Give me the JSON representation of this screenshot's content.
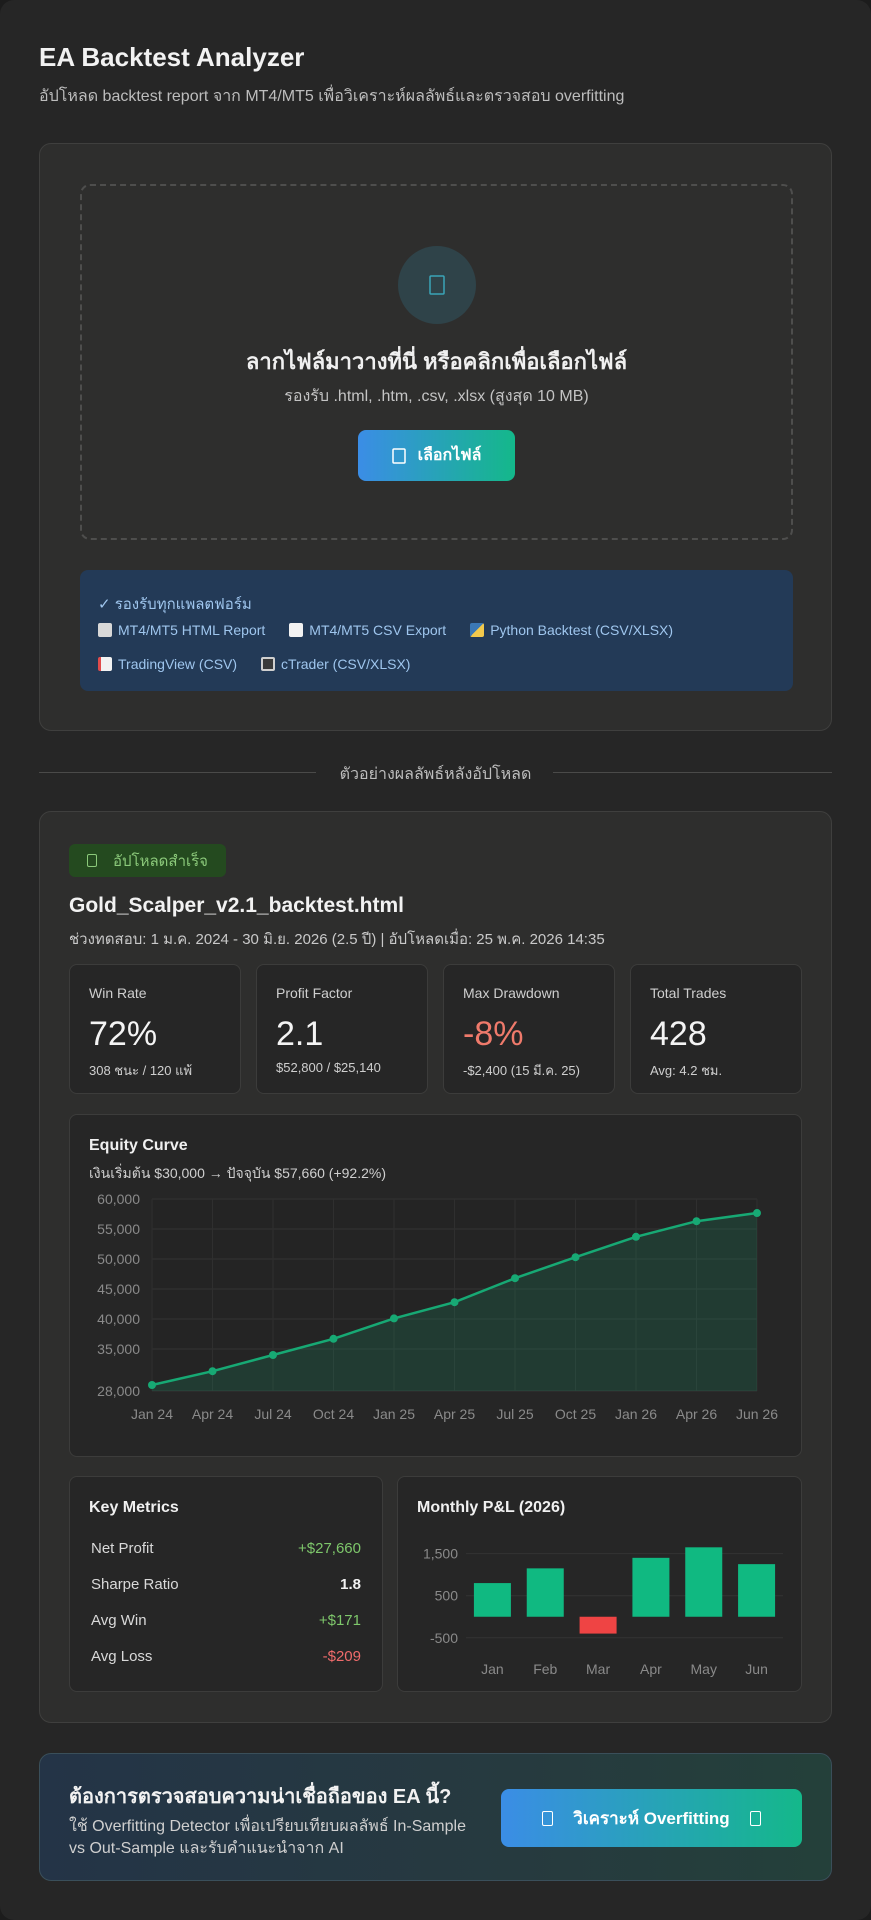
{
  "header": {
    "title": "EA Backtest Analyzer",
    "subtitle": "อัปโหลด backtest report จาก MT4/MT5 เพื่อวิเคราะห์ผลลัพธ์และตรวจสอบ overfitting"
  },
  "upload": {
    "drop_title": "ลากไฟล์มาวางที่นี่ หรือคลิกเพื่อเลือกไฟล์",
    "drop_sub": "รองรับ .html, .htm, .csv, .xlsx (สูงสุด 10 MB)",
    "choose_label": "เลือกไฟล์",
    "platforms_heading": "✓ รองรับทุกแพลตฟอร์ม",
    "platforms": [
      {
        "icon": "bar-chart-icon",
        "label": "MT4/MT5 HTML Report"
      },
      {
        "icon": "document-icon",
        "label": "MT4/MT5 CSV Export"
      },
      {
        "icon": "python-icon",
        "label": "Python Backtest (CSV/XLSX)"
      },
      {
        "icon": "line-chart-icon",
        "label": "TradingView (CSV)"
      },
      {
        "icon": "laptop-icon",
        "label": "cTrader (CSV/XLSX)"
      }
    ]
  },
  "divider_text": "ตัวอย่างผลลัพธ์หลังอัปโหลด",
  "result": {
    "badge": "อัปโหลดสำเร็จ",
    "file_name": "Gold_Scalper_v2.1_backtest.html",
    "meta": "ช่วงทดสอบ: 1 ม.ค. 2024 - 30 มิ.ย. 2026 (2.5 ปี) | อัปโหลดเมื่อ: 25 พ.ค. 2026 14:35",
    "stats": [
      {
        "label": "Win Rate",
        "value": "72%",
        "sub": "308 ชนะ / 120 แพ้",
        "tone": "normal"
      },
      {
        "label": "Profit Factor",
        "value": "2.1",
        "sub": "$52,800 / $25,140",
        "tone": "normal"
      },
      {
        "label": "Max Drawdown",
        "value": "-8%",
        "sub": "-$2,400 (15 มี.ค. 25)",
        "tone": "negative"
      },
      {
        "label": "Total Trades",
        "value": "428",
        "sub": "Avg: 4.2 ชม.",
        "tone": "normal"
      }
    ],
    "equity": {
      "title": "Equity Curve",
      "subtitle": "เงินเริ่มต้น $30,000 → ปัจจุบัน $57,660 (+92.2%)"
    },
    "key_metrics": {
      "title": "Key Metrics",
      "rows": [
        {
          "label": "Net Profit",
          "value": "+$27,660",
          "tone": "pos"
        },
        {
          "label": "Sharpe Ratio",
          "value": "1.8",
          "tone": "neutral"
        },
        {
          "label": "Avg Win",
          "value": "+$171",
          "tone": "pos"
        },
        {
          "label": "Avg Loss",
          "value": "-$209",
          "tone": "neg"
        }
      ]
    },
    "monthly": {
      "title": "Monthly P&L (2026)"
    }
  },
  "cta": {
    "title": "ต้องการตรวจสอบความน่าเชื่อถือของ EA นี้?",
    "desc": "ใช้ Overfitting Detector เพื่อเปรียบเทียบผลลัพธ์ In-Sample vs Out-Sample และรับคำแนะนำจาก AI",
    "button_label": "วิเคราะห์ Overfitting"
  },
  "colors": {
    "accent_blue": "#3b8de6",
    "accent_green": "#14b88a",
    "positive": "#7ec76b",
    "negative": "#ef6b6b",
    "line": "#17a974",
    "bar_pos": "#10b981",
    "bar_neg": "#ef4444"
  },
  "chart_data": [
    {
      "type": "area",
      "x": [
        "Jan 24",
        "Apr 24",
        "Jul 24",
        "Oct 24",
        "Jan 25",
        "Apr 25",
        "Jul 25",
        "Oct 25",
        "Jan 26",
        "Apr 26",
        "Jun 26"
      ],
      "y_tick_labels": [
        "28,000",
        "35,000",
        "40,000",
        "45,000",
        "50,000",
        "55,000",
        "60,000"
      ],
      "y_ticks": [
        28000,
        35000,
        40000,
        45000,
        50000,
        55000,
        60000
      ],
      "series": [
        {
          "values": [
            29000,
            31300,
            34000,
            36700,
            40100,
            42800,
            46800,
            50300,
            53700,
            56300,
            57660
          ]
        }
      ],
      "ylim": [
        28000,
        60000
      ],
      "grid": true,
      "legend": "none"
    },
    {
      "type": "bar",
      "categories": [
        "Jan",
        "Feb",
        "Mar",
        "Apr",
        "May",
        "Jun"
      ],
      "values": [
        800,
        1150,
        -400,
        1400,
        1650,
        1250
      ],
      "y_ticks": [
        -500,
        500,
        1500
      ],
      "y_tick_labels": [
        "-500",
        "500",
        "1,500"
      ],
      "ylim": [
        -600,
        1800
      ],
      "grid": true
    }
  ]
}
